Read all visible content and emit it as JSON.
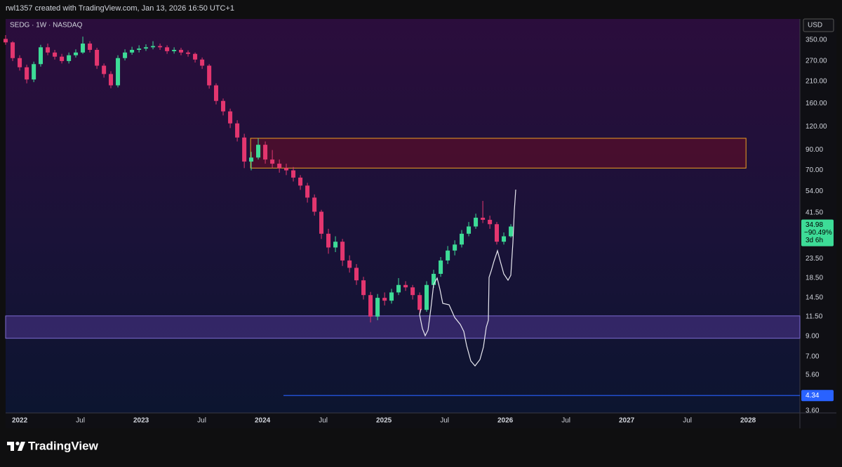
{
  "header": "rwl1357 created with TradingView.com, Jan 13, 2026 16:50 UTC+1",
  "brand": "TradingView",
  "chart_data": {
    "type": "candlestick",
    "title": "SEDG · 1W · NASDAQ",
    "currency": "USD",
    "log_scale": true,
    "up_color": "#3ddc97",
    "down_color": "#e3366f",
    "x": [
      2021.884,
      2021.942,
      2022.0,
      2022.058,
      2022.116,
      2022.173,
      2022.231,
      2022.289,
      2022.347,
      2022.405,
      2022.462,
      2022.52,
      2022.578,
      2022.636,
      2022.694,
      2022.751,
      2022.809,
      2022.867,
      2022.925,
      2022.983,
      2023.04,
      2023.098,
      2023.156,
      2023.214,
      2023.272,
      2023.329,
      2023.387,
      2023.445,
      2023.503,
      2023.561,
      2023.618,
      2023.676,
      2023.734,
      2023.792,
      2023.85,
      2023.907,
      2023.965,
      2024.023,
      2024.081,
      2024.139,
      2024.196,
      2024.254,
      2024.312,
      2024.37,
      2024.428,
      2024.485,
      2024.543,
      2024.601,
      2024.659,
      2024.717,
      2024.774,
      2024.832,
      2024.89,
      2024.948,
      2025.006,
      2025.063,
      2025.121,
      2025.179,
      2025.237,
      2025.295,
      2025.352,
      2025.41,
      2025.468,
      2025.526,
      2025.584,
      2025.641,
      2025.699,
      2025.757,
      2025.815,
      2025.873,
      2025.93,
      2025.988,
      2026.046
    ],
    "open": [
      355,
      340,
      280,
      250,
      215,
      260,
      320,
      300,
      285,
      270,
      290,
      300,
      335,
      310,
      255,
      230,
      200,
      280,
      300,
      310,
      315,
      320,
      325,
      320,
      305,
      310,
      300,
      295,
      275,
      255,
      200,
      165,
      145,
      125,
      105,
      78,
      82,
      96,
      80,
      76,
      72,
      70,
      64,
      58,
      50,
      42,
      32,
      27,
      29,
      23,
      21,
      18,
      15,
      11.5,
      14.5,
      14,
      15.5,
      17,
      16.5,
      15,
      12.5,
      17,
      19.5,
      23,
      26,
      28,
      32,
      35,
      39,
      38,
      36,
      29,
      31
    ],
    "high": [
      372,
      345,
      290,
      258,
      268,
      330,
      335,
      310,
      295,
      300,
      312,
      365,
      345,
      318,
      262,
      238,
      290,
      312,
      322,
      328,
      332,
      345,
      335,
      328,
      320,
      318,
      308,
      300,
      282,
      260,
      205,
      170,
      150,
      130,
      110,
      88,
      104,
      100,
      90,
      80,
      76,
      73,
      66,
      60,
      52,
      43,
      34,
      31,
      30,
      24.5,
      22,
      18.8,
      15.6,
      15.2,
      15.5,
      16.2,
      18.5,
      17.8,
      17,
      15.5,
      17.8,
      20.5,
      24,
      27.5,
      29.5,
      33.5,
      37,
      41,
      48,
      40,
      37,
      32.5,
      36
    ],
    "low": [
      330,
      270,
      240,
      205,
      208,
      252,
      290,
      275,
      262,
      262,
      282,
      295,
      300,
      245,
      220,
      193,
      195,
      272,
      292,
      300,
      306,
      312,
      310,
      295,
      296,
      290,
      285,
      265,
      245,
      192,
      158,
      138,
      118,
      100,
      72,
      70,
      80,
      76,
      72,
      68,
      66,
      61,
      55,
      47,
      40,
      30,
      25,
      25.5,
      21.5,
      19.8,
      17,
      14.2,
      10.7,
      11,
      13.2,
      13.5,
      15,
      15.8,
      14.2,
      11.9,
      12.2,
      16.4,
      18.8,
      22,
      24.5,
      27,
      31,
      34,
      36.5,
      34,
      28,
      28,
      30.5
    ],
    "close": [
      340,
      280,
      250,
      215,
      260,
      320,
      300,
      285,
      270,
      290,
      300,
      335,
      310,
      255,
      230,
      200,
      280,
      300,
      310,
      315,
      320,
      325,
      320,
      305,
      310,
      300,
      295,
      275,
      255,
      200,
      165,
      145,
      125,
      105,
      78,
      82,
      96,
      80,
      76,
      72,
      70,
      64,
      58,
      50,
      42,
      32,
      27,
      29,
      23,
      21,
      18,
      15,
      11.5,
      14.5,
      14,
      15.5,
      17,
      16.5,
      15,
      12.5,
      17,
      19.5,
      23,
      26,
      28,
      32,
      35,
      39,
      38,
      36,
      29,
      31,
      34.98
    ],
    "last_change": "−90.49%",
    "countdown": "3d 6h",
    "xlim": [
      2021.884,
      2028.427
    ],
    "xticks": [
      2022,
      {
        "value": 2022.5,
        "label": "Jul"
      },
      2023,
      {
        "value": 2023.5,
        "label": "Jul"
      },
      2024,
      {
        "value": 2024.5,
        "label": "Jul"
      },
      2025,
      {
        "value": 2025.5,
        "label": "Jul"
      },
      2026,
      {
        "value": 2026.5,
        "label": "Jul"
      },
      2027,
      {
        "value": 2027.5,
        "label": "Jul"
      },
      2028
    ],
    "ylim": [
      3.5,
      454
    ],
    "yticks": [
      {
        "value": 350,
        "label": "350.00"
      },
      {
        "value": 270,
        "label": "270.00"
      },
      {
        "value": 210,
        "label": "210.00"
      },
      {
        "value": 160,
        "label": "160.00"
      },
      {
        "value": 120,
        "label": "120.00"
      },
      {
        "value": 90,
        "label": "90.00"
      },
      {
        "value": 70,
        "label": "70.00"
      },
      {
        "value": 54,
        "label": "54.00"
      },
      {
        "value": 41.5,
        "label": "41.50"
      },
      {
        "value": 23.5,
        "label": "23.50"
      },
      {
        "value": 18.5,
        "label": "18.50"
      },
      {
        "value": 14.5,
        "label": "14.50"
      },
      {
        "value": 11.5,
        "label": "11.50"
      },
      {
        "value": 9,
        "label": "9.00"
      },
      {
        "value": 7,
        "label": "7.00"
      },
      {
        "value": 5.6,
        "label": "5.60"
      },
      {
        "value": 3.6,
        "label": "3.60"
      }
    ],
    "zones": [
      {
        "x": [
          2023.902,
          2027.983
        ],
        "y": [
          72,
          104
        ],
        "fill": "#4f0e2d",
        "border": "#f0a020"
      },
      {
        "x": [
          2021.884,
          2028.427
        ],
        "y": [
          8.8,
          11.6
        ],
        "fill": "#3a2a70",
        "border": "#7d6bd0"
      }
    ],
    "level": {
      "value": 4.34,
      "x0": 2024.173,
      "color": "#2962ff"
    }
  }
}
